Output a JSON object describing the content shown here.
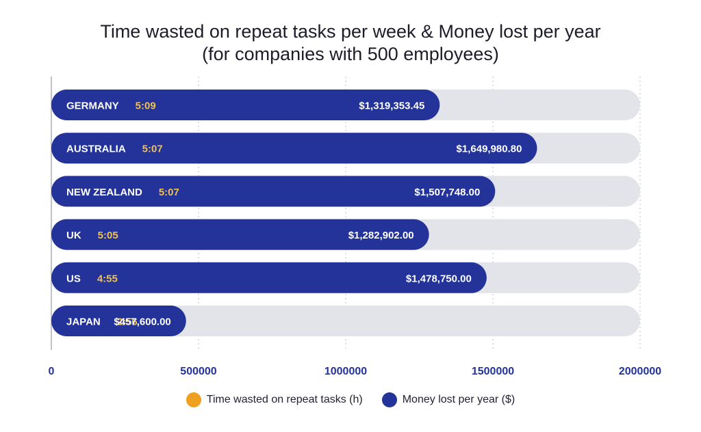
{
  "chart_data": {
    "type": "bar",
    "orientation": "horizontal",
    "title_line1": "Time wasted on repeat tasks per week & Money lost per year",
    "title_line2": "(for companies with 500 employees)",
    "categories": [
      "GERMANY",
      "AUSTRALIA",
      "NEW ZEALAND",
      "UK",
      "US",
      "JAPAN"
    ],
    "time_labels": [
      "5:09",
      "5:07",
      "5:07",
      "5:05",
      "4:55",
      "2:56"
    ],
    "values": [
      1319353.45,
      1649980.8,
      1507748.0,
      1282902.0,
      1478750.0,
      457600.0
    ],
    "value_labels": [
      "$1,319,353.45",
      "$1,649,980.80",
      "$1,507,748.00",
      "$1,282,902.00",
      "$1,478,750.00",
      "$457,600.00"
    ],
    "xlim": [
      0,
      2000000
    ],
    "x_ticks": [
      0,
      500000,
      1000000,
      1500000,
      2000000
    ],
    "x_tick_labels": [
      "0",
      "500000",
      "1000000",
      "1500000",
      "2000000"
    ],
    "grid": "vertical dotted",
    "legend": [
      {
        "label": "Time wasted on repeat tasks (h)",
        "color": "#f0a020"
      },
      {
        "label": "Money lost per year ($)",
        "color": "#23339a"
      }
    ],
    "legend_position": "bottom",
    "colors": {
      "bar": "#23339a",
      "track": "#e3e4e9",
      "time_text": "#f2c14e",
      "axis_text": "#23339a",
      "grid": "#b9bcc6"
    }
  }
}
